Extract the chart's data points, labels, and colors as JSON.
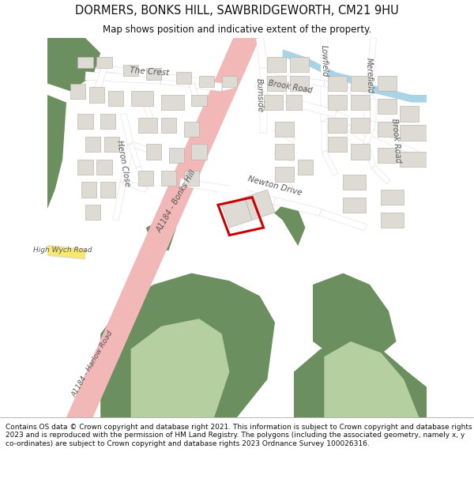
{
  "title_line1": "DORMERS, BONKS HILL, SAWBRIDGEWORTH, CM21 9HU",
  "title_line2": "Map shows position and indicative extent of the property.",
  "footer": "Contains OS data © Crown copyright and database right 2021. This information is subject to Crown copyright and database rights 2023 and is reproduced with the permission of HM Land Registry. The polygons (including the associated geometry, namely x, y co-ordinates) are subject to Crown copyright and database rights 2023 Ordnance Survey 100026316.",
  "map_bg": "#f0ede8",
  "road_pink": "#f2b8b8",
  "road_yellow": "#f5e6a0",
  "road_white": "#ffffff",
  "road_outline": "#cccccc",
  "green_dark": "#6b8f5e",
  "green_light": "#b5cfa0",
  "blue_river": "#a8d4e6",
  "building_fill": "#dedad4",
  "building_edge": "#b0aca4",
  "plot_red": "#cc0000",
  "text_color": "#333333",
  "label_color": "#555555",
  "title_fontsize": 10.5,
  "subtitle_fontsize": 8.5,
  "footer_fontsize": 6.5
}
